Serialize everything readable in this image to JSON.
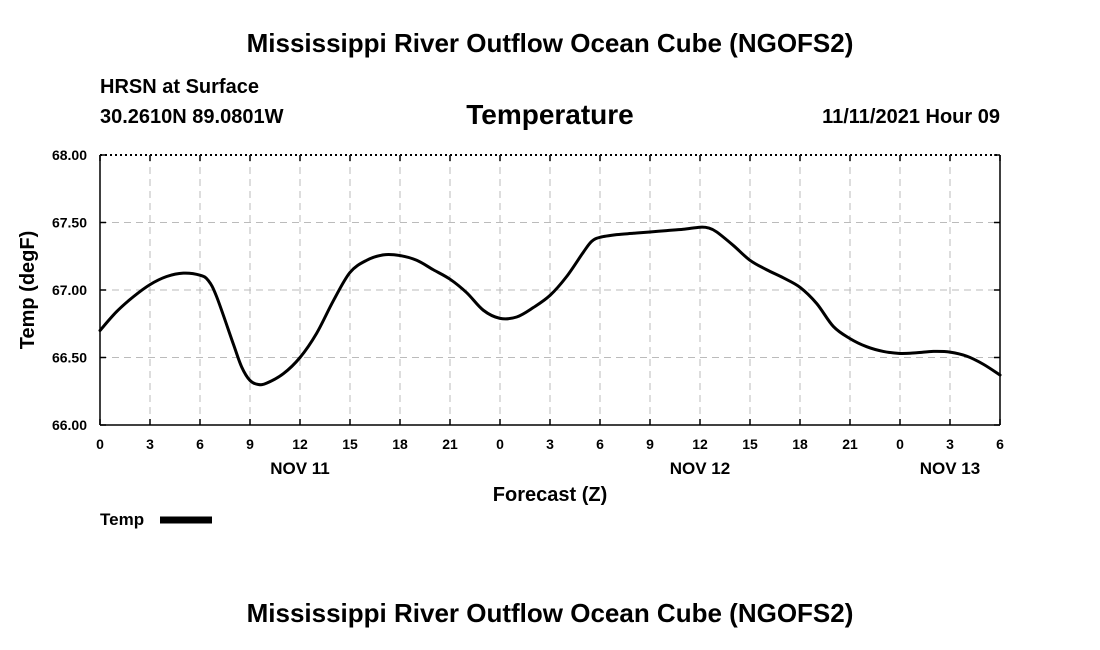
{
  "header": {
    "main_title": "Mississippi River Outflow Ocean Cube (NGOFS2)",
    "station": "HRSN at Surface",
    "coords": "30.2610N  89.0801W",
    "variable": "Temperature",
    "timestamp": "11/11/2021 Hour 09",
    "bottom_title": "Mississippi River Outflow Ocean Cube (NGOFS2)"
  },
  "chart_data": {
    "type": "line",
    "title": "Temperature",
    "xlabel": "Forecast (Z)",
    "ylabel": "Temp (degF)",
    "xlim": [
      0,
      54
    ],
    "ylim": [
      66.0,
      68.0
    ],
    "grid": true,
    "x_ticks": [
      0,
      3,
      6,
      9,
      12,
      15,
      18,
      21,
      24,
      27,
      30,
      33,
      36,
      39,
      42,
      45,
      48,
      51,
      54
    ],
    "x_tick_labels": [
      "0",
      "3",
      "6",
      "9",
      "12",
      "15",
      "18",
      "21",
      "0",
      "3",
      "6",
      "9",
      "12",
      "15",
      "18",
      "21",
      "0",
      "3",
      "6"
    ],
    "y_ticks": [
      66.0,
      66.5,
      67.0,
      67.5,
      68.0
    ],
    "y_tick_labels": [
      "66.00",
      "66.50",
      "67.00",
      "67.50",
      "68.00"
    ],
    "date_labels": [
      {
        "x": 12,
        "label": "NOV 11"
      },
      {
        "x": 36,
        "label": "NOV 12"
      },
      {
        "x": 51,
        "label": "NOV 13"
      }
    ],
    "series": [
      {
        "name": "Temp",
        "color": "#000000",
        "x": [
          0,
          1,
          2,
          3,
          4,
          5,
          6,
          6.5,
          7,
          8,
          8.5,
          9,
          9.5,
          10,
          11,
          12,
          13,
          14,
          15,
          16,
          17,
          18,
          19,
          20,
          21,
          22,
          23,
          24,
          25,
          26,
          27,
          28,
          29,
          29.5,
          30,
          31,
          32,
          33,
          34,
          35,
          36,
          36.5,
          37,
          38,
          39,
          40,
          41,
          42,
          43,
          44,
          45,
          46,
          47,
          48,
          49,
          50,
          51,
          52,
          53,
          54
        ],
        "values": [
          66.7,
          66.84,
          66.95,
          67.04,
          67.1,
          67.125,
          67.11,
          67.07,
          66.95,
          66.6,
          66.43,
          66.33,
          66.3,
          66.31,
          66.38,
          66.5,
          66.68,
          66.92,
          67.13,
          67.22,
          67.26,
          67.255,
          67.22,
          67.15,
          67.08,
          66.98,
          66.85,
          66.79,
          66.8,
          66.87,
          66.96,
          67.1,
          67.28,
          67.36,
          67.39,
          67.41,
          67.42,
          67.43,
          67.44,
          67.45,
          67.465,
          67.46,
          67.43,
          67.33,
          67.22,
          67.15,
          67.09,
          67.02,
          66.9,
          66.73,
          66.64,
          66.58,
          66.545,
          66.53,
          66.535,
          66.545,
          66.54,
          66.51,
          66.45,
          66.37
        ]
      }
    ],
    "legend": {
      "position": "bottom-left",
      "entries": [
        "Temp"
      ]
    }
  }
}
